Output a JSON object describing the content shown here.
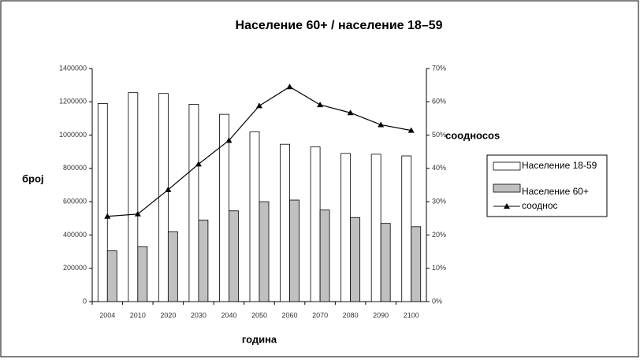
{
  "chart_data": {
    "type": "bar_line",
    "title": "Население 60+ / население 18–59",
    "ylabel": "број",
    "xlabel": "година",
    "y2label": "соодносos",
    "categories": [
      "2004",
      "2010",
      "2020",
      "2030",
      "2040",
      "2050",
      "2060",
      "2070",
      "2080",
      "2090",
      "2100"
    ],
    "series": [
      {
        "name": "Население 18-59",
        "color": "#ffffff",
        "type": "bar",
        "values": [
          1190000,
          1255000,
          1250000,
          1185000,
          1125000,
          1020000,
          945000,
          930000,
          890000,
          885000,
          875000
        ]
      },
      {
        "name": "Население 60+",
        "color": "#c0c0c0",
        "type": "bar",
        "values": [
          305000,
          330000,
          420000,
          490000,
          545000,
          600000,
          610000,
          550000,
          505000,
          470000,
          450000
        ]
      },
      {
        "name": "сооднос",
        "color": "#000000",
        "type": "line",
        "axis": "y2",
        "values": [
          25.6,
          26.3,
          33.6,
          41.3,
          48.4,
          58.8,
          64.5,
          59.1,
          56.7,
          53.1,
          51.4
        ]
      }
    ],
    "ylim": [
      0,
      1400000
    ],
    "yticks": [
      0,
      200000,
      400000,
      600000,
      800000,
      1000000,
      1200000,
      1400000
    ],
    "y2lim": [
      0,
      70
    ],
    "y2ticks": [
      {
        "value": 0,
        "label": "0%"
      },
      {
        "value": 10,
        "label": "10%"
      },
      {
        "value": 20,
        "label": "20%"
      },
      {
        "value": 30,
        "label": "30%"
      },
      {
        "value": 40,
        "label": "40%"
      },
      {
        "value": 50,
        "label": "50%"
      },
      {
        "value": 60,
        "label": "60%"
      },
      {
        "value": 70,
        "label": "70%"
      }
    ]
  }
}
